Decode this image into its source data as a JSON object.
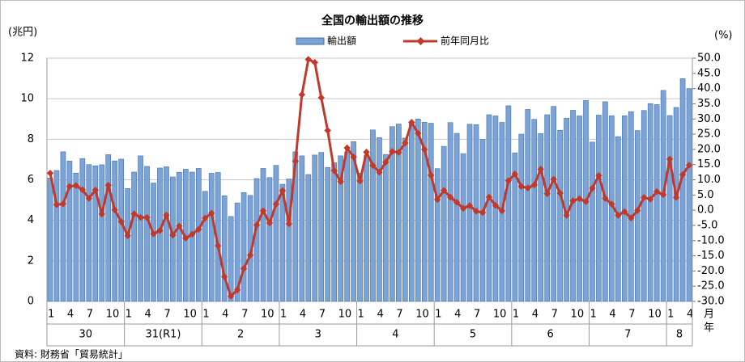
{
  "chart_data": {
    "type": "bar_line",
    "title": "全国の輸出額の推移",
    "y_unit": "(兆円)",
    "y2_unit": "(%)",
    "source": "資料: 財務省「貿易統計」",
    "month_unit": "月",
    "year_unit": "年",
    "years": [
      "30",
      "31(R1)",
      "2",
      "3",
      "4",
      "5",
      "6",
      "7",
      "8"
    ],
    "categories": [
      "1",
      null,
      null,
      "4",
      null,
      null,
      "7",
      null,
      null,
      "10",
      null,
      null,
      "1",
      null,
      null,
      "4",
      null,
      null,
      "7",
      null,
      null,
      "10",
      null,
      null,
      "1",
      null,
      null,
      "4",
      null,
      null,
      "7",
      null,
      null,
      "10",
      null,
      null,
      "1",
      null,
      null,
      "4",
      null,
      null,
      "7",
      null,
      null,
      "10",
      null,
      null,
      "1",
      null,
      null,
      "4",
      null,
      null,
      "7",
      null,
      null,
      "10",
      null,
      null,
      "1",
      null,
      null,
      "4",
      null,
      null,
      "7",
      null,
      null,
      "10",
      null,
      null,
      "1",
      null,
      null,
      "4",
      null,
      null,
      "7",
      null,
      null,
      "10",
      null,
      null,
      "1",
      null,
      null,
      "4",
      null,
      null,
      "7",
      null,
      null,
      "10",
      null,
      null,
      "1",
      null,
      null,
      "4"
    ],
    "ylim": [
      0,
      12
    ],
    "yticks": [
      0,
      2,
      4,
      6,
      8,
      10,
      12
    ],
    "y2lim": [
      -30,
      50
    ],
    "y2ticks": [
      {
        "value": 50,
        "label": "50.0"
      },
      {
        "value": 45,
        "label": "45.0"
      },
      {
        "value": 40,
        "label": "40.0"
      },
      {
        "value": 35,
        "label": "35.0"
      },
      {
        "value": 30,
        "label": "30.0"
      },
      {
        "value": 25,
        "label": "25.0"
      },
      {
        "value": 20,
        "label": "20.0"
      },
      {
        "value": 15,
        "label": "15.0"
      },
      {
        "value": 10,
        "label": "10.0"
      },
      {
        "value": 5,
        "label": "5.0"
      },
      {
        "value": 0,
        "label": "0.0"
      },
      {
        "value": -5,
        "label": "-5.0"
      },
      {
        "value": -10,
        "label": "-10.0"
      },
      {
        "value": -15,
        "label": "-15.0"
      },
      {
        "value": -20,
        "label": "-20.0"
      },
      {
        "value": -25,
        "label": "-25.0"
      },
      {
        "value": -30,
        "label": "-30.0"
      }
    ],
    "grid": true,
    "series": [
      {
        "name": "輸出額",
        "type": "bar",
        "color": "#7aa3d8",
        "values": [
          6.08,
          6.46,
          7.38,
          6.92,
          6.33,
          7.05,
          6.75,
          6.69,
          6.74,
          7.24,
          6.93,
          7.02,
          5.57,
          6.38,
          7.18,
          6.66,
          5.84,
          6.58,
          6.64,
          6.14,
          6.37,
          6.52,
          6.38,
          6.56,
          5.43,
          6.32,
          6.36,
          5.21,
          4.19,
          4.86,
          5.37,
          5.23,
          6.06,
          6.56,
          6.11,
          6.71,
          5.78,
          6.04,
          7.38,
          7.18,
          6.26,
          7.22,
          7.35,
          6.61,
          6.84,
          7.18,
          7.37,
          7.88,
          6.33,
          7.19,
          8.46,
          8.08,
          7.25,
          8.62,
          8.75,
          8.06,
          8.82,
          9.0,
          8.84,
          8.79,
          6.55,
          7.65,
          8.82,
          8.29,
          7.29,
          8.74,
          8.72,
          7.99,
          9.21,
          9.15,
          8.83,
          9.65,
          7.33,
          8.25,
          9.47,
          8.98,
          8.28,
          9.21,
          9.62,
          8.44,
          9.04,
          9.43,
          9.15,
          9.91,
          7.86,
          9.19,
          9.85,
          9.16,
          8.13,
          9.16,
          9.36,
          8.43,
          9.42,
          9.76,
          9.71,
          10.41,
          9.17,
          9.57,
          10.99,
          10.5
        ]
      },
      {
        "name": "前年同月比",
        "type": "line",
        "axis": "y2",
        "color": "#c0392b",
        "values": [
          12.2,
          1.8,
          2.1,
          7.8,
          8.1,
          6.7,
          3.9,
          6.6,
          -1.3,
          8.2,
          0.1,
          -3.8,
          -8.4,
          -1.2,
          -2.4,
          -2.4,
          -7.8,
          -6.7,
          -1.6,
          -8.2,
          -5.2,
          -9.2,
          -7.9,
          -6.3,
          -2.6,
          -1.0,
          -11.7,
          -21.9,
          -28.3,
          -26.2,
          -19.2,
          -14.8,
          -4.9,
          -0.2,
          -4.2,
          2.0,
          6.4,
          -4.5,
          16.1,
          38.0,
          49.6,
          48.6,
          37.0,
          26.2,
          13.0,
          9.4,
          20.5,
          17.5,
          9.6,
          19.1,
          14.7,
          12.5,
          15.8,
          19.3,
          19.0,
          22.1,
          28.9,
          25.3,
          20.0,
          11.5,
          3.5,
          6.5,
          4.3,
          2.6,
          0.6,
          1.5,
          -0.3,
          -0.8,
          4.3,
          1.6,
          -0.2,
          9.7,
          11.9,
          7.8,
          7.3,
          8.3,
          13.5,
          5.4,
          10.2,
          5.6,
          -1.7,
          3.1,
          3.8,
          2.8,
          7.2,
          11.4,
          3.9,
          2.0,
          -1.7,
          -0.5,
          -2.6,
          -0.1,
          4.2,
          3.6,
          6.1,
          5.1,
          16.8,
          4.2,
          11.7,
          14.8
        ]
      }
    ]
  }
}
